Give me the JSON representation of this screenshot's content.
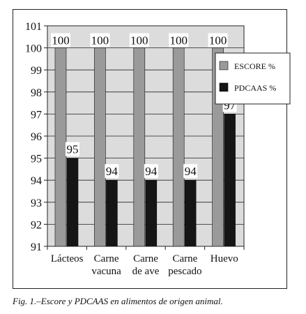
{
  "chart_data": {
    "type": "bar",
    "categories": [
      [
        "Lácteos"
      ],
      [
        "Carne",
        "vacuna"
      ],
      [
        "Carne",
        "de ave"
      ],
      [
        "Carne",
        "pescado"
      ],
      [
        "Huevo"
      ]
    ],
    "series": [
      {
        "name": "ESCORE %",
        "values": [
          100,
          100,
          100,
          100,
          100
        ],
        "color": "#9a9a9a"
      },
      {
        "name": "PDCAAS %",
        "values": [
          95,
          94,
          94,
          94,
          97
        ],
        "color": "#151515"
      }
    ],
    "ylim": [
      91,
      101
    ],
    "yticks": [
      "91",
      "92",
      "93",
      "94",
      "95",
      "96",
      "97",
      "98",
      "99",
      "100",
      "101"
    ],
    "data_labels": [
      [
        "100",
        "100",
        "100",
        "100",
        "100"
      ],
      [
        "95",
        "94",
        "94",
        "94",
        "97"
      ]
    ],
    "grid": true,
    "plot_background": "#dcdcdc",
    "legend_position": "right, inside plot"
  },
  "caption": "Fig. 1.–Escore y PDCAAS en alimentos de origen animal."
}
